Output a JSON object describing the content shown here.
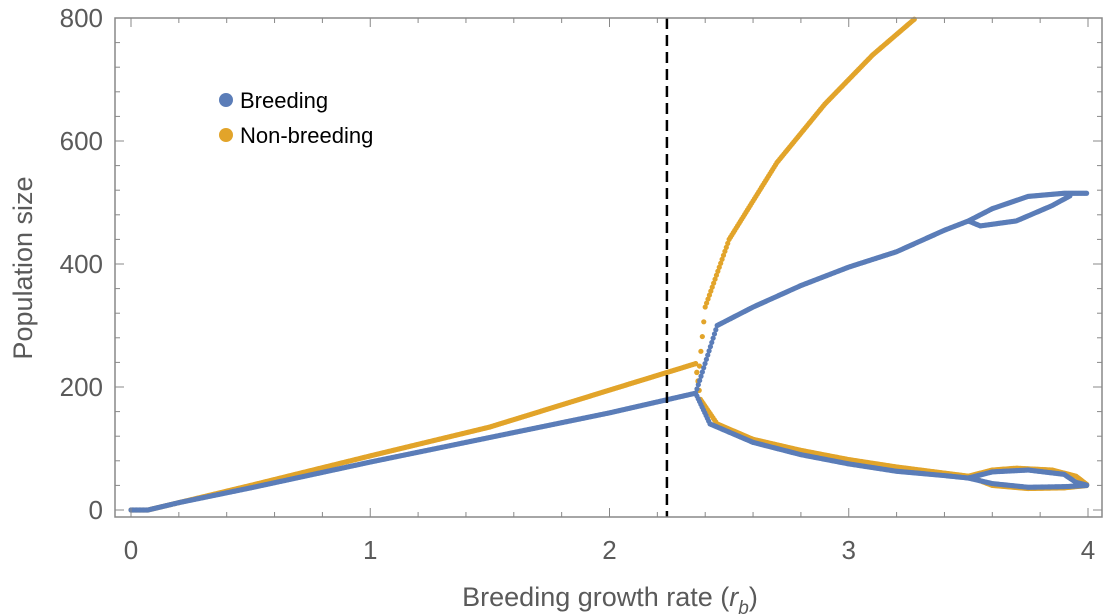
{
  "chart_data": {
    "type": "scatter",
    "title": "",
    "xlabel_main": "Breeding growth rate (",
    "xlabel_var": "r",
    "xlabel_sub": "b",
    "xlabel_close": ")",
    "ylabel": "Population size",
    "xlim": [
      0,
      4
    ],
    "ylim": [
      0,
      800
    ],
    "x_ticks": [
      0,
      1,
      2,
      3,
      4
    ],
    "y_ticks": [
      0,
      200,
      400,
      600,
      800
    ],
    "frame": true,
    "grid": false,
    "legend_position": "top-left",
    "vline": {
      "x": 2.24,
      "style": "dashed",
      "color": "#000000"
    },
    "series": [
      {
        "name": "Breeding",
        "color": "#5b7db8",
        "branches": [
          {
            "points": [
              [
                0.0,
                0
              ],
              [
                0.07,
                0
              ],
              [
                0.2,
                12
              ],
              [
                0.5,
                36
              ],
              [
                1.0,
                78
              ],
              [
                1.5,
                118
              ],
              [
                2.0,
                158
              ],
              [
                2.36,
                190
              ]
            ]
          },
          {
            "points": [
              [
                2.36,
                190
              ],
              [
                2.45,
                300
              ],
              [
                2.6,
                330
              ],
              [
                2.8,
                365
              ],
              [
                3.0,
                395
              ],
              [
                3.2,
                420
              ],
              [
                3.4,
                455
              ],
              [
                3.5,
                470
              ]
            ]
          },
          {
            "points": [
              [
                2.36,
                190
              ],
              [
                2.42,
                140
              ],
              [
                2.6,
                110
              ],
              [
                2.8,
                90
              ],
              [
                3.0,
                75
              ],
              [
                3.2,
                63
              ],
              [
                3.4,
                56
              ],
              [
                3.5,
                52
              ]
            ]
          },
          {
            "points": [
              [
                3.5,
                470
              ],
              [
                3.6,
                490
              ],
              [
                3.75,
                510
              ],
              [
                3.9,
                515
              ],
              [
                4.0,
                515
              ]
            ]
          },
          {
            "points": [
              [
                3.5,
                470
              ],
              [
                3.55,
                462
              ],
              [
                3.7,
                470
              ],
              [
                3.85,
                495
              ],
              [
                3.93,
                512
              ]
            ]
          },
          {
            "points": [
              [
                3.5,
                52
              ],
              [
                3.6,
                62
              ],
              [
                3.75,
                65
              ],
              [
                3.9,
                58
              ],
              [
                3.95,
                45
              ],
              [
                4.0,
                40
              ]
            ]
          },
          {
            "points": [
              [
                3.5,
                52
              ],
              [
                3.6,
                43
              ],
              [
                3.75,
                37
              ],
              [
                3.9,
                38
              ],
              [
                4.0,
                40
              ]
            ]
          }
        ]
      },
      {
        "name": "Non-breeding",
        "color": "#e2a42a",
        "branches": [
          {
            "points": [
              [
                0.0,
                0
              ],
              [
                0.07,
                0
              ],
              [
                0.2,
                12
              ],
              [
                0.5,
                40
              ],
              [
                1.0,
                88
              ],
              [
                1.5,
                135
              ],
              [
                2.0,
                195
              ],
              [
                2.36,
                238
              ]
            ]
          },
          {
            "points": [
              [
                2.36,
                238
              ],
              [
                2.37,
                210
              ],
              [
                2.4,
                330
              ],
              [
                2.5,
                440
              ],
              [
                2.7,
                565
              ],
              [
                2.9,
                660
              ],
              [
                3.1,
                740
              ],
              [
                3.28,
                800
              ]
            ]
          },
          {
            "points": [
              [
                2.36,
                238
              ],
              [
                2.38,
                180
              ],
              [
                2.45,
                140
              ],
              [
                2.6,
                115
              ],
              [
                2.8,
                97
              ],
              [
                3.0,
                82
              ],
              [
                3.2,
                70
              ],
              [
                3.4,
                60
              ],
              [
                3.5,
                55
              ]
            ]
          },
          {
            "points": [
              [
                3.5,
                55
              ],
              [
                3.6,
                65
              ],
              [
                3.7,
                68
              ],
              [
                3.85,
                65
              ],
              [
                3.95,
                55
              ],
              [
                4.0,
                40
              ]
            ]
          },
          {
            "points": [
              [
                3.5,
                55
              ],
              [
                3.6,
                40
              ],
              [
                3.75,
                35
              ],
              [
                3.9,
                36
              ],
              [
                4.0,
                40
              ]
            ]
          }
        ]
      }
    ]
  }
}
